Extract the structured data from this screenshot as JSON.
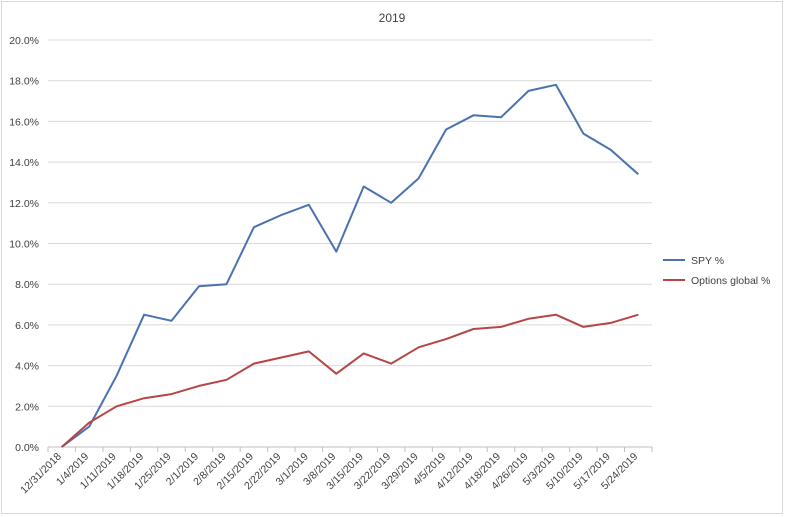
{
  "chart_data": {
    "type": "line",
    "title": "2019",
    "xlabel": "",
    "ylabel": "",
    "ylim": [
      0,
      20
    ],
    "yticks": [
      "0.0%",
      "2.0%",
      "4.0%",
      "6.0%",
      "8.0%",
      "10.0%",
      "12.0%",
      "14.0%",
      "16.0%",
      "18.0%",
      "20.0%"
    ],
    "grid": "horizontal",
    "legend": "right",
    "categories": [
      "12/31/2018",
      "1/4/2019",
      "1/11/2019",
      "1/18/2019",
      "1/25/2019",
      "2/1/2019",
      "2/8/2019",
      "2/15/2019",
      "2/22/2019",
      "3/1/2019",
      "3/8/2019",
      "3/15/2019",
      "3/22/2019",
      "3/29/2019",
      "4/5/2019",
      "4/12/2019",
      "4/18/2019",
      "4/26/2019",
      "5/3/2019",
      "5/10/2019",
      "5/17/2019",
      "5/24/2019"
    ],
    "series": [
      {
        "name": "SPY %",
        "color": "#4a72b0",
        "values": [
          0.0,
          1.0,
          3.5,
          6.5,
          6.2,
          7.9,
          8.0,
          10.8,
          11.4,
          11.9,
          9.6,
          12.8,
          12.0,
          13.2,
          15.6,
          16.3,
          16.2,
          17.5,
          17.8,
          15.4,
          14.6,
          13.4
        ]
      },
      {
        "name": "Options global %",
        "color": "#b84545",
        "values": [
          0.0,
          1.2,
          2.0,
          2.4,
          2.6,
          3.0,
          3.3,
          4.1,
          4.4,
          4.7,
          3.6,
          4.6,
          4.1,
          4.9,
          5.3,
          5.8,
          5.9,
          6.3,
          6.5,
          5.9,
          6.1,
          6.5
        ]
      }
    ]
  }
}
